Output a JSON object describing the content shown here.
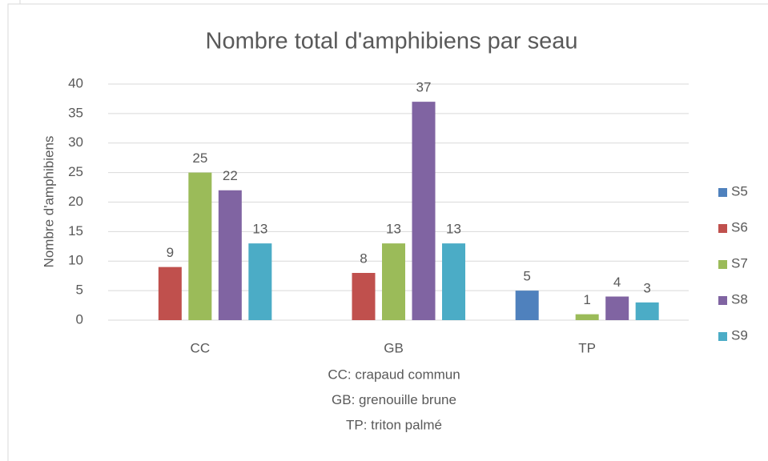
{
  "chart_data": {
    "type": "bar",
    "title": "Nombre total d'amphibiens par seau",
    "y_label": "Nombre d'amphibiens",
    "categories": [
      "CC",
      "GB",
      "TP"
    ],
    "series": [
      {
        "name": "S5",
        "color": "#4f81bd",
        "values": [
          null,
          null,
          5
        ]
      },
      {
        "name": "S6",
        "color": "#c0504d",
        "values": [
          9,
          8,
          null
        ]
      },
      {
        "name": "S7",
        "color": "#9bbb59",
        "values": [
          25,
          13,
          1
        ]
      },
      {
        "name": "S8",
        "color": "#8064a2",
        "values": [
          22,
          37,
          4
        ]
      },
      {
        "name": "S9",
        "color": "#4bacc6",
        "values": [
          13,
          13,
          3
        ]
      }
    ],
    "ylim": [
      0,
      40
    ],
    "yticks": [
      0,
      5,
      10,
      15,
      20,
      25,
      30,
      35,
      40
    ],
    "grid": true,
    "legend": "right",
    "annotations": [
      "CC: crapaud commun",
      "GB: grenouille brune",
      "TP: triton palmé"
    ]
  }
}
